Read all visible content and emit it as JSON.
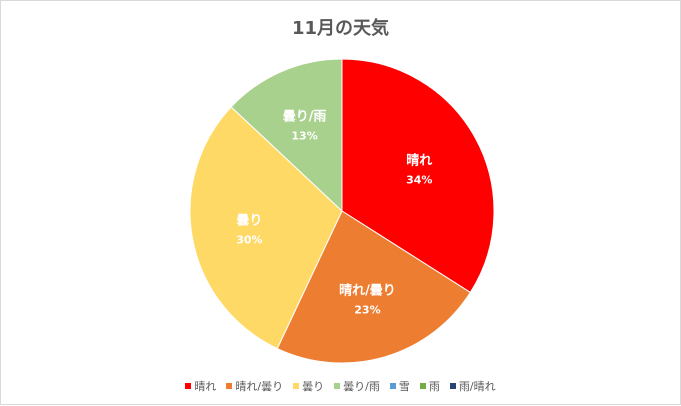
{
  "chart_data": {
    "type": "pie",
    "title": "11月の天気",
    "categories": [
      "晴れ",
      "晴れ/曇り",
      "曇り",
      "曇り/雨",
      "雪",
      "雨",
      "雨/晴れ"
    ],
    "values": [
      34,
      23,
      30,
      13,
      0,
      0,
      0
    ],
    "value_labels": [
      "34%",
      "23%",
      "30%",
      "13%",
      "",
      "",
      ""
    ],
    "colors": [
      "#ff0000",
      "#ed7d31",
      "#ffd966",
      "#a9d18e",
      "#5b9bd5",
      "#70ad47",
      "#264478"
    ],
    "legend_position": "bottom"
  }
}
